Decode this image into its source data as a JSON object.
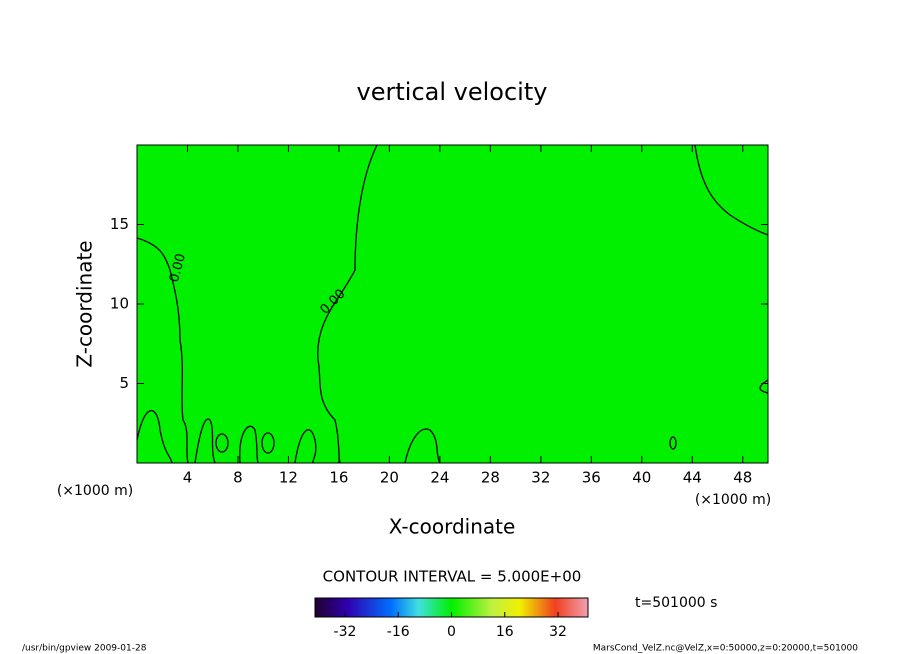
{
  "chart_data": {
    "type": "contour",
    "title": "vertical velocity",
    "xlabel": "X-coordinate",
    "ylabel": "Z-coordinate",
    "x_unit": "(×1000 m)",
    "xlim": [
      0,
      50
    ],
    "xticks": [
      4,
      8,
      12,
      16,
      20,
      24,
      28,
      32,
      36,
      40,
      44,
      48
    ],
    "ylim": [
      0,
      20
    ],
    "yticks": [
      5,
      10,
      15
    ],
    "field_color": "#00f000",
    "contour_labels": [
      "0.00",
      "0.00"
    ],
    "contour_interval": "CONTOUR INTERVAL = 5.000E+00",
    "time": "t=501000 s",
    "colorbar": {
      "lim": [
        -41,
        41
      ],
      "ticks": [
        -32,
        -16,
        0,
        16,
        32
      ]
    },
    "footer_left": "/usr/bin/gpview   2009-01-28",
    "footer_right": "MarsCond_VelZ.nc@VelZ,x=0:50000,z=0:20000,t=501000"
  }
}
